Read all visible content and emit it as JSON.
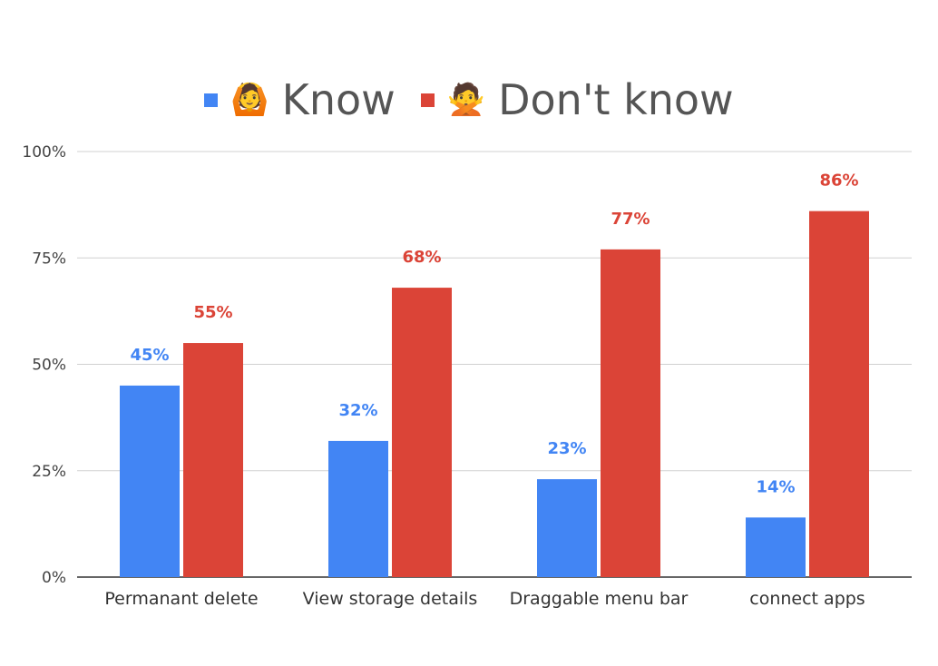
{
  "legend": {
    "items": [
      {
        "emoji": "🙆",
        "label": "Know",
        "color": "#4285f4"
      },
      {
        "emoji": "🙅",
        "label": "Don't know",
        "color": "#db4437"
      }
    ]
  },
  "chart_data": {
    "type": "bar",
    "title": "",
    "xlabel": "",
    "ylabel": "",
    "categories": [
      "Permanant delete",
      "View storage details",
      "Draggable menu bar",
      "connect apps"
    ],
    "series": [
      {
        "name": "Know",
        "color": "#4285f4",
        "values": [
          45,
          32,
          23,
          14
        ],
        "labels": [
          "45%",
          "32%",
          "23%",
          "14%"
        ]
      },
      {
        "name": "Don't know",
        "color": "#db4437",
        "values": [
          55,
          68,
          77,
          86
        ],
        "labels": [
          "55%",
          "68%",
          "77%",
          "86%"
        ]
      }
    ],
    "ylim": [
      0,
      100
    ],
    "yticks": [
      0,
      25,
      50,
      75,
      100
    ],
    "ytick_labels": [
      "0%",
      "25%",
      "50%",
      "75%",
      "100%"
    ],
    "grid": true,
    "legend_position": "top-center"
  }
}
